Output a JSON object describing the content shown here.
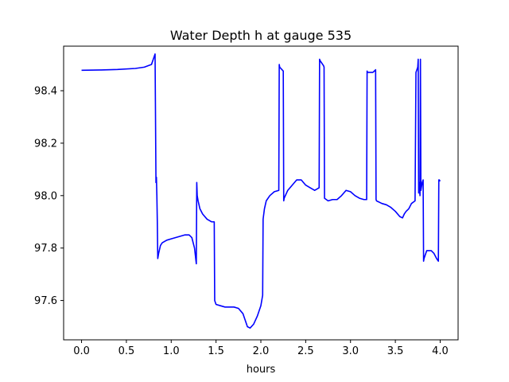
{
  "chart_data": {
    "type": "line",
    "title": "Water Depth h at gauge 535",
    "xlabel": "hours",
    "ylabel": "",
    "xlim": [
      -0.2,
      4.2
    ],
    "ylim": [
      97.45,
      98.57
    ],
    "x_ticks": [
      0.0,
      0.5,
      1.0,
      1.5,
      2.0,
      2.5,
      3.0,
      3.5,
      4.0
    ],
    "x_tick_labels": [
      "0.0",
      "0.5",
      "1.0",
      "1.5",
      "2.0",
      "2.5",
      "3.0",
      "3.5",
      "4.0"
    ],
    "y_ticks": [
      97.6,
      97.8,
      98.0,
      98.2,
      98.4
    ],
    "y_tick_labels": [
      "97.6",
      "97.8",
      "98.0",
      "98.2",
      "98.4"
    ],
    "grid": false,
    "legend": "none",
    "series": [
      {
        "color": "#0000ff",
        "x": [
          0.0,
          0.2,
          0.4,
          0.6,
          0.7,
          0.78,
          0.82,
          0.83,
          0.835,
          0.84,
          0.845,
          0.85,
          0.86,
          0.88,
          0.9,
          0.95,
          1.0,
          1.05,
          1.1,
          1.15,
          1.2,
          1.23,
          1.26,
          1.28,
          1.285,
          1.29,
          1.3,
          1.32,
          1.35,
          1.4,
          1.45,
          1.48,
          1.485,
          1.5,
          1.55,
          1.6,
          1.7,
          1.75,
          1.8,
          1.85,
          1.88,
          1.92,
          1.96,
          2.0,
          2.02,
          2.025,
          2.04,
          2.06,
          2.1,
          2.15,
          2.2,
          2.205,
          2.21,
          2.25,
          2.255,
          2.26,
          2.3,
          2.35,
          2.4,
          2.45,
          2.5,
          2.55,
          2.6,
          2.65,
          2.655,
          2.66,
          2.7,
          2.705,
          2.71,
          2.75,
          2.8,
          2.85,
          2.9,
          2.95,
          3.0,
          3.05,
          3.1,
          3.15,
          3.18,
          3.185,
          3.19,
          3.25,
          3.28,
          3.285,
          3.29,
          3.35,
          3.4,
          3.45,
          3.5,
          3.55,
          3.58,
          3.6,
          3.62,
          3.65,
          3.68,
          3.72,
          3.73,
          3.75,
          3.755,
          3.76,
          3.765,
          3.77,
          3.775,
          3.78,
          3.785,
          3.79,
          3.8,
          3.81,
          3.815,
          3.82,
          3.83,
          3.84,
          3.85,
          3.9,
          3.93,
          3.96,
          3.98,
          3.985,
          3.99,
          4.0
        ],
        "y": [
          98.478,
          98.479,
          98.481,
          98.485,
          98.49,
          98.5,
          98.54,
          98.05,
          98.07,
          98.0,
          97.9,
          97.76,
          97.78,
          97.81,
          97.82,
          97.83,
          97.835,
          97.84,
          97.845,
          97.85,
          97.85,
          97.84,
          97.8,
          97.74,
          98.05,
          98.0,
          97.98,
          97.95,
          97.93,
          97.91,
          97.9,
          97.9,
          97.6,
          97.585,
          97.58,
          97.575,
          97.575,
          97.57,
          97.55,
          97.5,
          97.495,
          97.51,
          97.54,
          97.58,
          97.62,
          97.91,
          97.95,
          97.98,
          98.0,
          98.015,
          98.02,
          98.5,
          98.49,
          98.475,
          97.98,
          97.99,
          98.02,
          98.04,
          98.06,
          98.06,
          98.04,
          98.03,
          98.02,
          98.03,
          98.52,
          98.515,
          98.495,
          98.49,
          97.99,
          97.98,
          97.985,
          97.985,
          98.0,
          98.02,
          98.015,
          98.0,
          97.99,
          97.985,
          97.985,
          98.475,
          98.47,
          98.47,
          98.48,
          97.985,
          97.98,
          97.97,
          97.965,
          97.955,
          97.94,
          97.92,
          97.915,
          97.93,
          97.94,
          97.95,
          97.97,
          97.98,
          98.47,
          98.49,
          98.52,
          98.01,
          98.05,
          98.03,
          98.0,
          98.52,
          98.02,
          98.03,
          98.05,
          98.06,
          97.75,
          97.76,
          97.77,
          97.78,
          97.79,
          97.79,
          97.78,
          97.76,
          97.75,
          98.06,
          98.06,
          98.055
        ]
      }
    ]
  }
}
